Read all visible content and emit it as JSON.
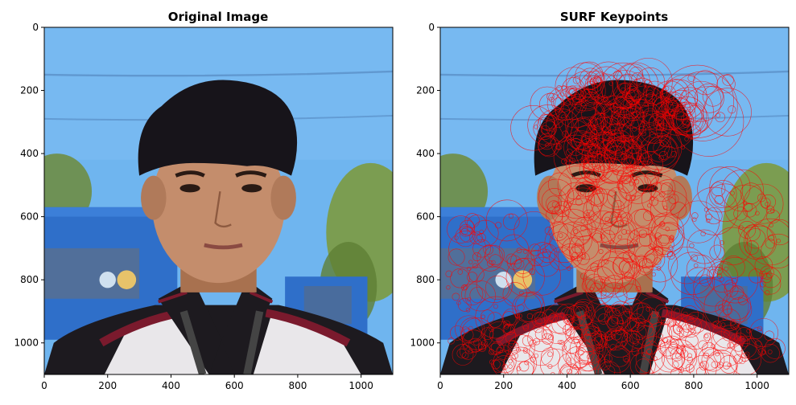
{
  "figure": {
    "panels": [
      {
        "title": "Original Image"
      },
      {
        "title": "SURF Keypoints"
      }
    ]
  },
  "chart_data": [
    {
      "type": "image",
      "title": "Original Image",
      "xlim": [
        0,
        1100
      ],
      "ylim": [
        1100,
        0
      ],
      "x_ticks": [
        0,
        200,
        400,
        600,
        800,
        1000
      ],
      "y_ticks": [
        0,
        200,
        400,
        600,
        800,
        1000
      ],
      "grid": false
    },
    {
      "type": "image",
      "title": "SURF Keypoints",
      "xlim": [
        0,
        1100
      ],
      "ylim": [
        1100,
        0
      ],
      "x_ticks": [
        0,
        200,
        400,
        600,
        800,
        1000
      ],
      "y_ticks": [
        0,
        200,
        400,
        600,
        800,
        1000
      ],
      "grid": false,
      "keypoint_color": "#ff0000"
    }
  ],
  "colors": {
    "sky": "#6fb5ef",
    "sky_light": "#8cc7f4",
    "hair": "#17141a",
    "skin": "#c48d6c",
    "truck_blue": "#2f6fc9",
    "shirt_dark": "#1d1a1f",
    "shirt_white": "#e9e7ea",
    "shirt_maroon": "#7a1a2d",
    "foliage": "#6f8b3a",
    "keypoint": "#ff0000"
  }
}
